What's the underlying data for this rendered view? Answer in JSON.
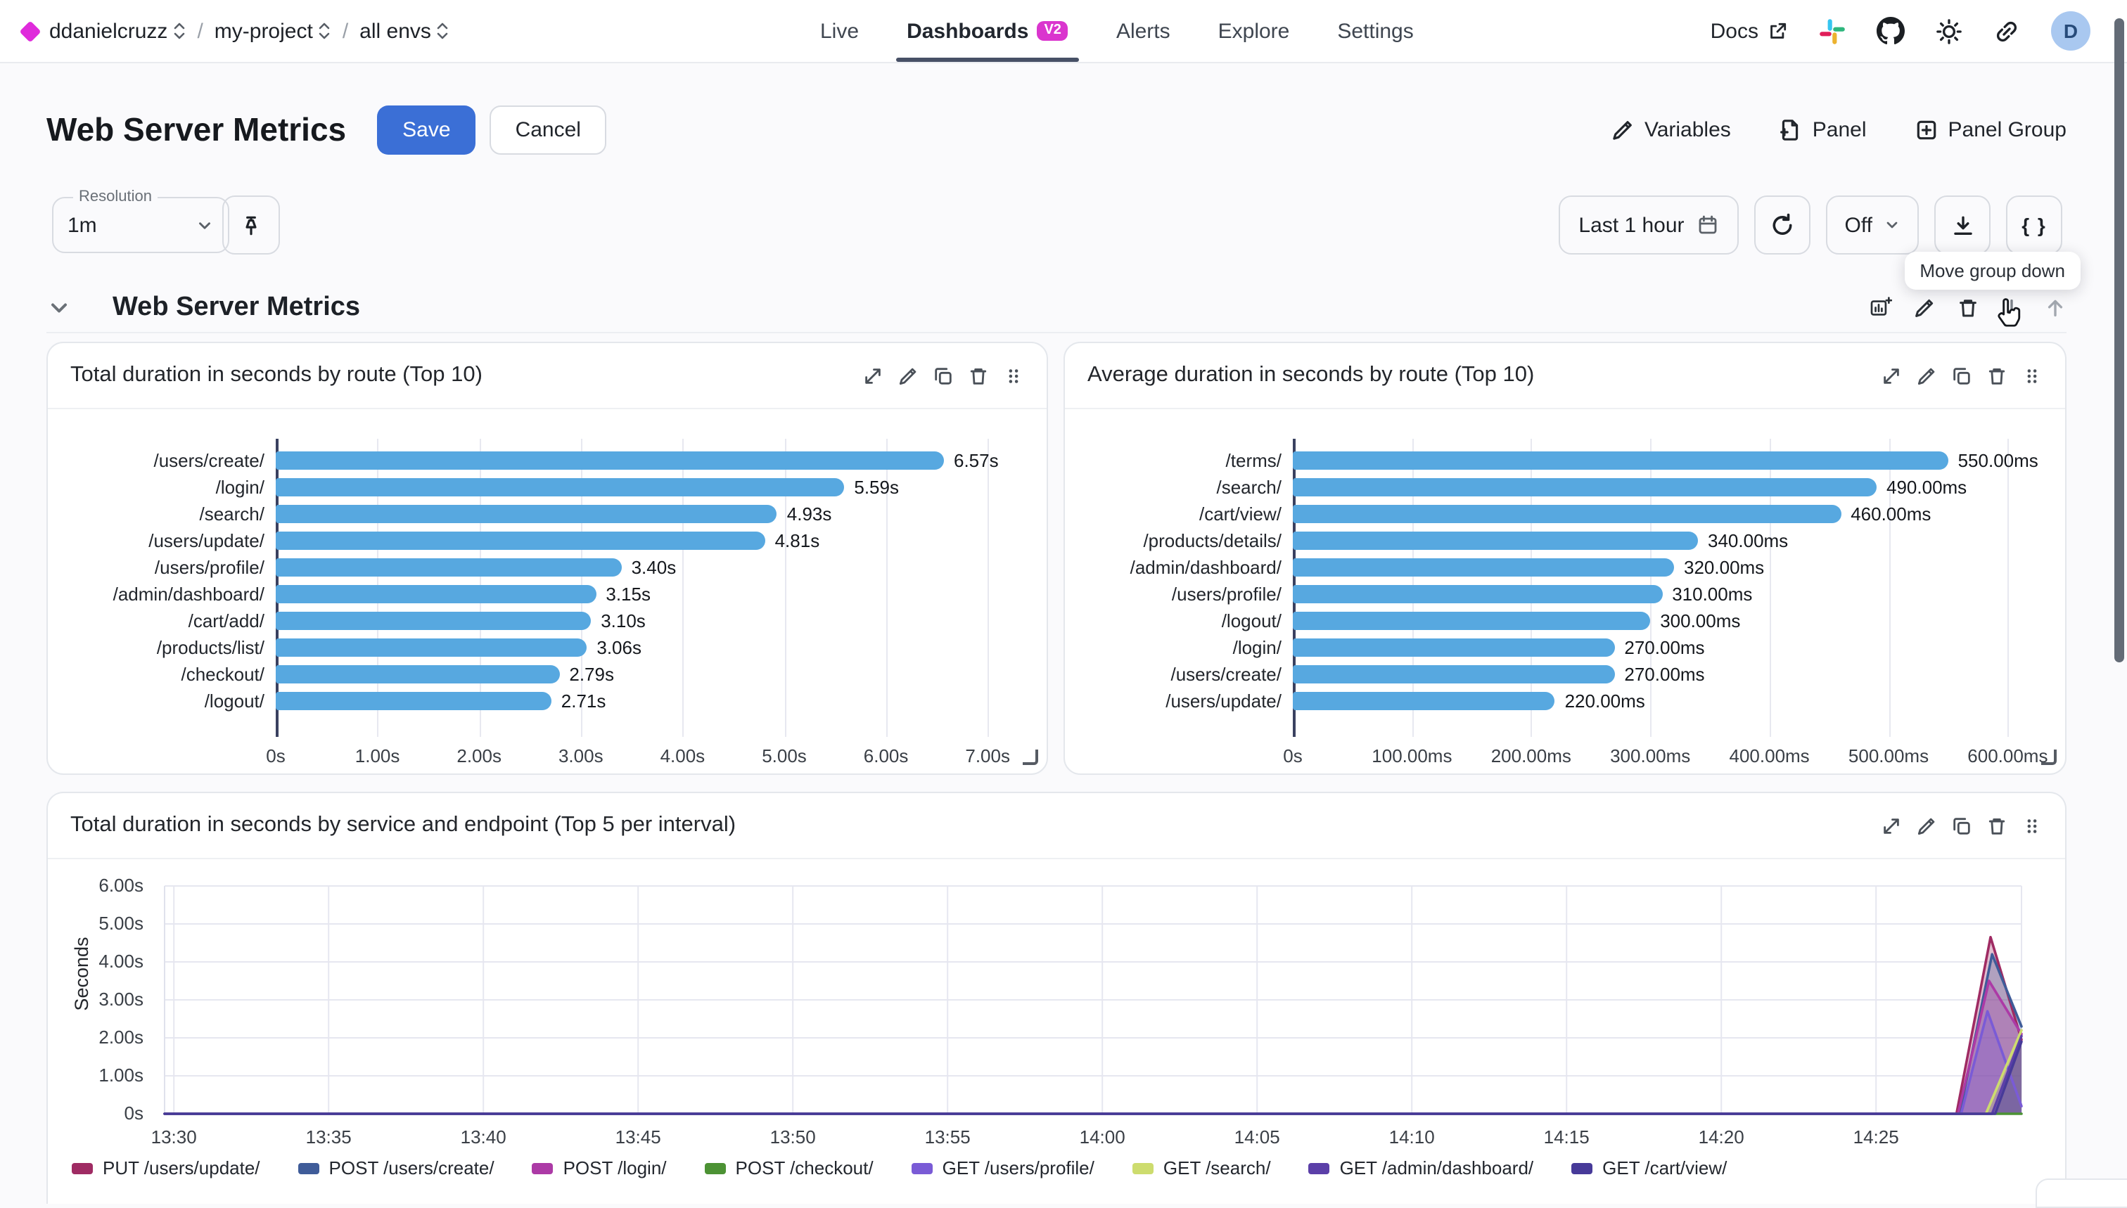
{
  "colors": {
    "accent_blue": "#3B6FD6",
    "bar_blue": "#57A8E0",
    "badge_magenta": "#DA35CE",
    "logo_magenta": "#DF2BDB",
    "active_tab_underline": "#475066"
  },
  "topbar": {
    "org": "ddanielcruzz",
    "project": "my-project",
    "env": "all envs",
    "separator": "/",
    "tabs": [
      {
        "label": "Live",
        "active": false,
        "badge": ""
      },
      {
        "label": "Dashboards",
        "active": true,
        "badge": "V2"
      },
      {
        "label": "Alerts",
        "active": false,
        "badge": ""
      },
      {
        "label": "Explore",
        "active": false,
        "badge": ""
      },
      {
        "label": "Settings",
        "active": false,
        "badge": ""
      }
    ],
    "docs_label": "Docs",
    "avatar_initial": "D"
  },
  "header": {
    "title": "Web Server Metrics",
    "save_label": "Save",
    "cancel_label": "Cancel",
    "actions": [
      {
        "label": "Variables",
        "icon": "edit"
      },
      {
        "label": "Panel",
        "icon": "file-plus"
      },
      {
        "label": "Panel Group",
        "icon": "square-plus"
      }
    ]
  },
  "controls": {
    "resolution_label": "Resolution",
    "resolution_value": "1m",
    "time_range": "Last 1 hour",
    "refresh_interval": "Off",
    "braces_label": "{ }",
    "tooltip": "Move group down"
  },
  "group": {
    "title": "Web Server Metrics",
    "actions": [
      {
        "icon": "add-panel",
        "disabled": false
      },
      {
        "icon": "edit",
        "disabled": false
      },
      {
        "icon": "delete",
        "disabled": false
      },
      {
        "icon": "move-down",
        "disabled": false
      },
      {
        "icon": "move-up",
        "disabled": true
      }
    ]
  },
  "panel_action_icons": [
    "expand",
    "edit",
    "duplicate",
    "delete",
    "drag"
  ],
  "chart_data": [
    {
      "type": "bar",
      "orientation": "horizontal",
      "title": "Total duration in seconds by route (Top 10)",
      "categories": [
        "/users/create/",
        "/login/",
        "/search/",
        "/users/update/",
        "/users/profile/",
        "/admin/dashboard/",
        "/cart/add/",
        "/products/list/",
        "/checkout/",
        "/logout/"
      ],
      "values": [
        6.57,
        5.59,
        4.93,
        4.81,
        3.4,
        3.15,
        3.1,
        3.06,
        2.79,
        2.71
      ],
      "value_labels": [
        "6.57s",
        "5.59s",
        "4.93s",
        "4.81s",
        "3.40s",
        "3.15s",
        "3.10s",
        "3.06s",
        "2.79s",
        "2.71s"
      ],
      "x_ticks": [
        {
          "v": 0,
          "label": "0s"
        },
        {
          "v": 1,
          "label": "1.00s"
        },
        {
          "v": 2,
          "label": "2.00s"
        },
        {
          "v": 3,
          "label": "3.00s"
        },
        {
          "v": 4,
          "label": "4.00s"
        },
        {
          "v": 5,
          "label": "5.00s"
        },
        {
          "v": 6,
          "label": "6.00s"
        },
        {
          "v": 7,
          "label": "7.00s"
        }
      ],
      "xlim": [
        0,
        7.5
      ],
      "bar_color": "#57A8E0",
      "grid": true
    },
    {
      "type": "bar",
      "orientation": "horizontal",
      "title": "Average duration in seconds by route (Top 10)",
      "categories": [
        "/terms/",
        "/search/",
        "/cart/view/",
        "/products/details/",
        "/admin/dashboard/",
        "/users/profile/",
        "/logout/",
        "/login/",
        "/users/create/",
        "/users/update/"
      ],
      "values": [
        550,
        490,
        460,
        340,
        320,
        310,
        300,
        270,
        270,
        220
      ],
      "value_labels": [
        "550.00ms",
        "490.00ms",
        "460.00ms",
        "340.00ms",
        "320.00ms",
        "310.00ms",
        "300.00ms",
        "270.00ms",
        "270.00ms",
        "220.00ms"
      ],
      "x_ticks": [
        {
          "v": 0,
          "label": "0s"
        },
        {
          "v": 100,
          "label": "100.00ms"
        },
        {
          "v": 200,
          "label": "200.00ms"
        },
        {
          "v": 300,
          "label": "300.00ms"
        },
        {
          "v": 400,
          "label": "400.00ms"
        },
        {
          "v": 500,
          "label": "500.00ms"
        },
        {
          "v": 600,
          "label": "600.00ms"
        }
      ],
      "xlim": [
        0,
        640
      ],
      "bar_color": "#57A8E0",
      "grid": true
    },
    {
      "type": "area",
      "title": "Total duration in seconds by service and endpoint (Top 5 per interval)",
      "ylabel": "Seconds",
      "y_ticks": [
        {
          "v": 0,
          "label": "0s"
        },
        {
          "v": 1,
          "label": "1.00s"
        },
        {
          "v": 2,
          "label": "2.00s"
        },
        {
          "v": 3,
          "label": "3.00s"
        },
        {
          "v": 4,
          "label": "4.00s"
        },
        {
          "v": 5,
          "label": "5.00s"
        },
        {
          "v": 6,
          "label": "6.00s"
        }
      ],
      "ylim": [
        0,
        6.3
      ],
      "x_ticks": [
        {
          "m": 0,
          "label": "13:30"
        },
        {
          "m": 5,
          "label": "13:35"
        },
        {
          "m": 10,
          "label": "13:40"
        },
        {
          "m": 15,
          "label": "13:45"
        },
        {
          "m": 20,
          "label": "13:50"
        },
        {
          "m": 25,
          "label": "13:55"
        },
        {
          "m": 30,
          "label": "14:00"
        },
        {
          "m": 35,
          "label": "14:05"
        },
        {
          "m": 40,
          "label": "14:10"
        },
        {
          "m": 45,
          "label": "14:15"
        },
        {
          "m": 50,
          "label": "14:20"
        },
        {
          "m": 55,
          "label": "14:25"
        }
      ],
      "x_range_minutes": [
        -0.3,
        59.7
      ],
      "grid": true,
      "legend_position": "bottom",
      "series": [
        {
          "name": "PUT /users/update/",
          "color": "#9F2B63",
          "points": [
            [
              -0.3,
              0
            ],
            [
              57.6,
              0
            ],
            [
              58.7,
              4.65
            ],
            [
              59.7,
              1.95
            ]
          ]
        },
        {
          "name": "POST /users/create/",
          "color": "#3F5C99",
          "points": [
            [
              -0.3,
              0
            ],
            [
              57.7,
              0
            ],
            [
              58.75,
              4.2
            ],
            [
              59.7,
              2.3
            ]
          ]
        },
        {
          "name": "POST /login/",
          "color": "#AC3AA6",
          "points": [
            [
              -0.3,
              0
            ],
            [
              57.65,
              0
            ],
            [
              58.65,
              3.5
            ],
            [
              59.7,
              2.1
            ]
          ]
        },
        {
          "name": "POST /checkout/",
          "color": "#4C9234",
          "points": [
            [
              -0.3,
              0
            ],
            [
              59.7,
              0
            ]
          ]
        },
        {
          "name": "GET /users/profile/",
          "color": "#7A5BD6",
          "points": [
            [
              -0.3,
              0
            ],
            [
              57.75,
              0
            ],
            [
              58.6,
              2.7
            ],
            [
              59.7,
              0.2
            ]
          ]
        },
        {
          "name": "GET /search/",
          "color": "#CDDC6E",
          "points": [
            [
              -0.3,
              0
            ],
            [
              58.55,
              0
            ],
            [
              59.7,
              2.2
            ]
          ]
        },
        {
          "name": "GET /admin/dashboard/",
          "color": "#5B3FA8",
          "points": [
            [
              -0.3,
              0
            ],
            [
              58.75,
              0
            ],
            [
              59.7,
              2.05
            ]
          ]
        },
        {
          "name": "GET /cart/view/",
          "color": "#473A99",
          "points": [
            [
              -0.3,
              0
            ],
            [
              58.85,
              0
            ],
            [
              59.7,
              1.9
            ]
          ]
        }
      ]
    }
  ]
}
